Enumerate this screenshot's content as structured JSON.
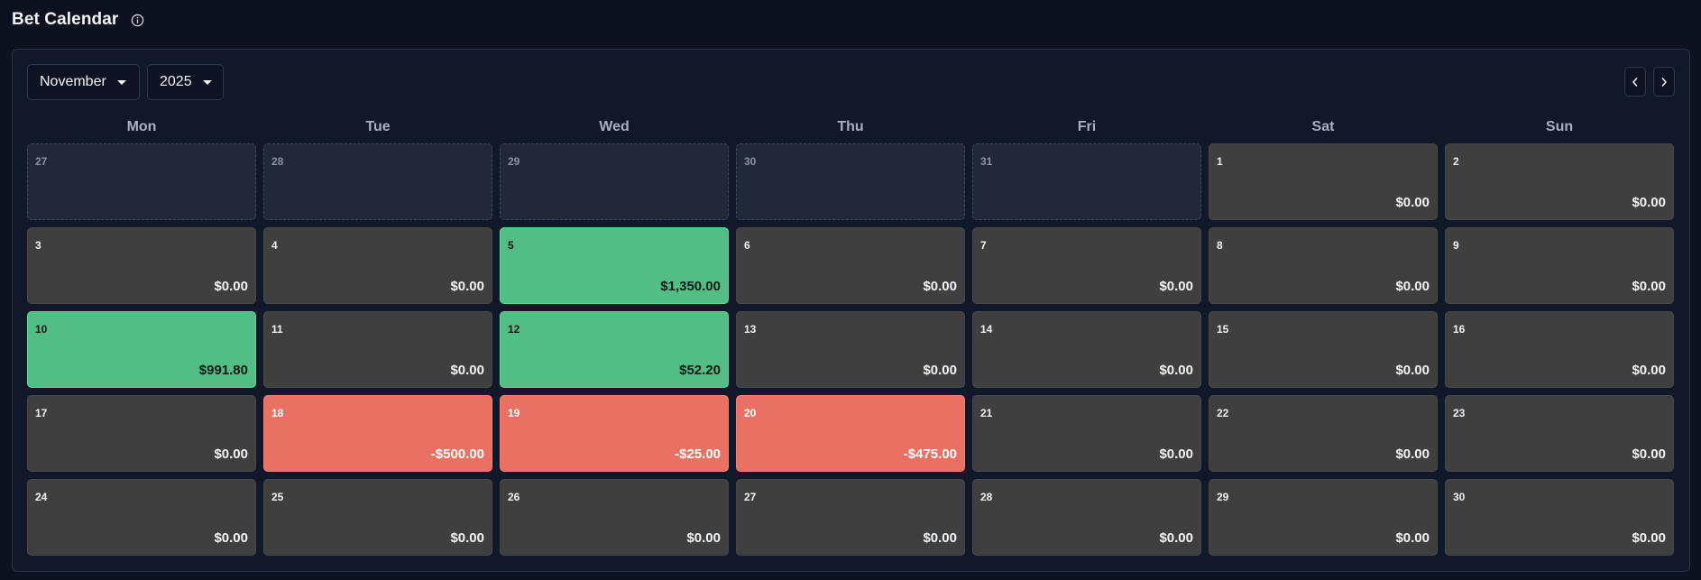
{
  "header": {
    "title": "Bet Calendar",
    "info_icon": "info-circle-icon"
  },
  "controls": {
    "month": {
      "selected": "November",
      "icon": "caret-down-icon"
    },
    "year": {
      "selected": "2025",
      "icon": "caret-down-icon"
    },
    "prev_icon": "chevron-left-icon",
    "next_icon": "chevron-right-icon"
  },
  "weekdays": [
    "Mon",
    "Tue",
    "Wed",
    "Thu",
    "Fri",
    "Sat",
    "Sun"
  ],
  "colors": {
    "win": "#52be85",
    "loss": "#e87164",
    "neutral": "#3f3f3f",
    "outside_month": "#212839",
    "background": "#0d1220"
  },
  "days": [
    {
      "day": "27",
      "amount": "",
      "status": "out"
    },
    {
      "day": "28",
      "amount": "",
      "status": "out"
    },
    {
      "day": "29",
      "amount": "",
      "status": "out"
    },
    {
      "day": "30",
      "amount": "",
      "status": "out"
    },
    {
      "day": "31",
      "amount": "",
      "status": "out"
    },
    {
      "day": "1",
      "amount": "$0.00",
      "status": "neutral"
    },
    {
      "day": "2",
      "amount": "$0.00",
      "status": "neutral"
    },
    {
      "day": "3",
      "amount": "$0.00",
      "status": "neutral"
    },
    {
      "day": "4",
      "amount": "$0.00",
      "status": "neutral"
    },
    {
      "day": "5",
      "amount": "$1,350.00",
      "status": "win"
    },
    {
      "day": "6",
      "amount": "$0.00",
      "status": "neutral"
    },
    {
      "day": "7",
      "amount": "$0.00",
      "status": "neutral"
    },
    {
      "day": "8",
      "amount": "$0.00",
      "status": "neutral"
    },
    {
      "day": "9",
      "amount": "$0.00",
      "status": "neutral"
    },
    {
      "day": "10",
      "amount": "$991.80",
      "status": "win"
    },
    {
      "day": "11",
      "amount": "$0.00",
      "status": "neutral"
    },
    {
      "day": "12",
      "amount": "$52.20",
      "status": "win"
    },
    {
      "day": "13",
      "amount": "$0.00",
      "status": "neutral"
    },
    {
      "day": "14",
      "amount": "$0.00",
      "status": "neutral"
    },
    {
      "day": "15",
      "amount": "$0.00",
      "status": "neutral"
    },
    {
      "day": "16",
      "amount": "$0.00",
      "status": "neutral"
    },
    {
      "day": "17",
      "amount": "$0.00",
      "status": "neutral"
    },
    {
      "day": "18",
      "amount": "-$500.00",
      "status": "loss"
    },
    {
      "day": "19",
      "amount": "-$25.00",
      "status": "loss"
    },
    {
      "day": "20",
      "amount": "-$475.00",
      "status": "loss"
    },
    {
      "day": "21",
      "amount": "$0.00",
      "status": "neutral"
    },
    {
      "day": "22",
      "amount": "$0.00",
      "status": "neutral"
    },
    {
      "day": "23",
      "amount": "$0.00",
      "status": "neutral"
    },
    {
      "day": "24",
      "amount": "$0.00",
      "status": "neutral"
    },
    {
      "day": "25",
      "amount": "$0.00",
      "status": "neutral"
    },
    {
      "day": "26",
      "amount": "$0.00",
      "status": "neutral"
    },
    {
      "day": "27",
      "amount": "$0.00",
      "status": "neutral"
    },
    {
      "day": "28",
      "amount": "$0.00",
      "status": "neutral"
    },
    {
      "day": "29",
      "amount": "$0.00",
      "status": "neutral"
    },
    {
      "day": "30",
      "amount": "$0.00",
      "status": "neutral"
    }
  ]
}
